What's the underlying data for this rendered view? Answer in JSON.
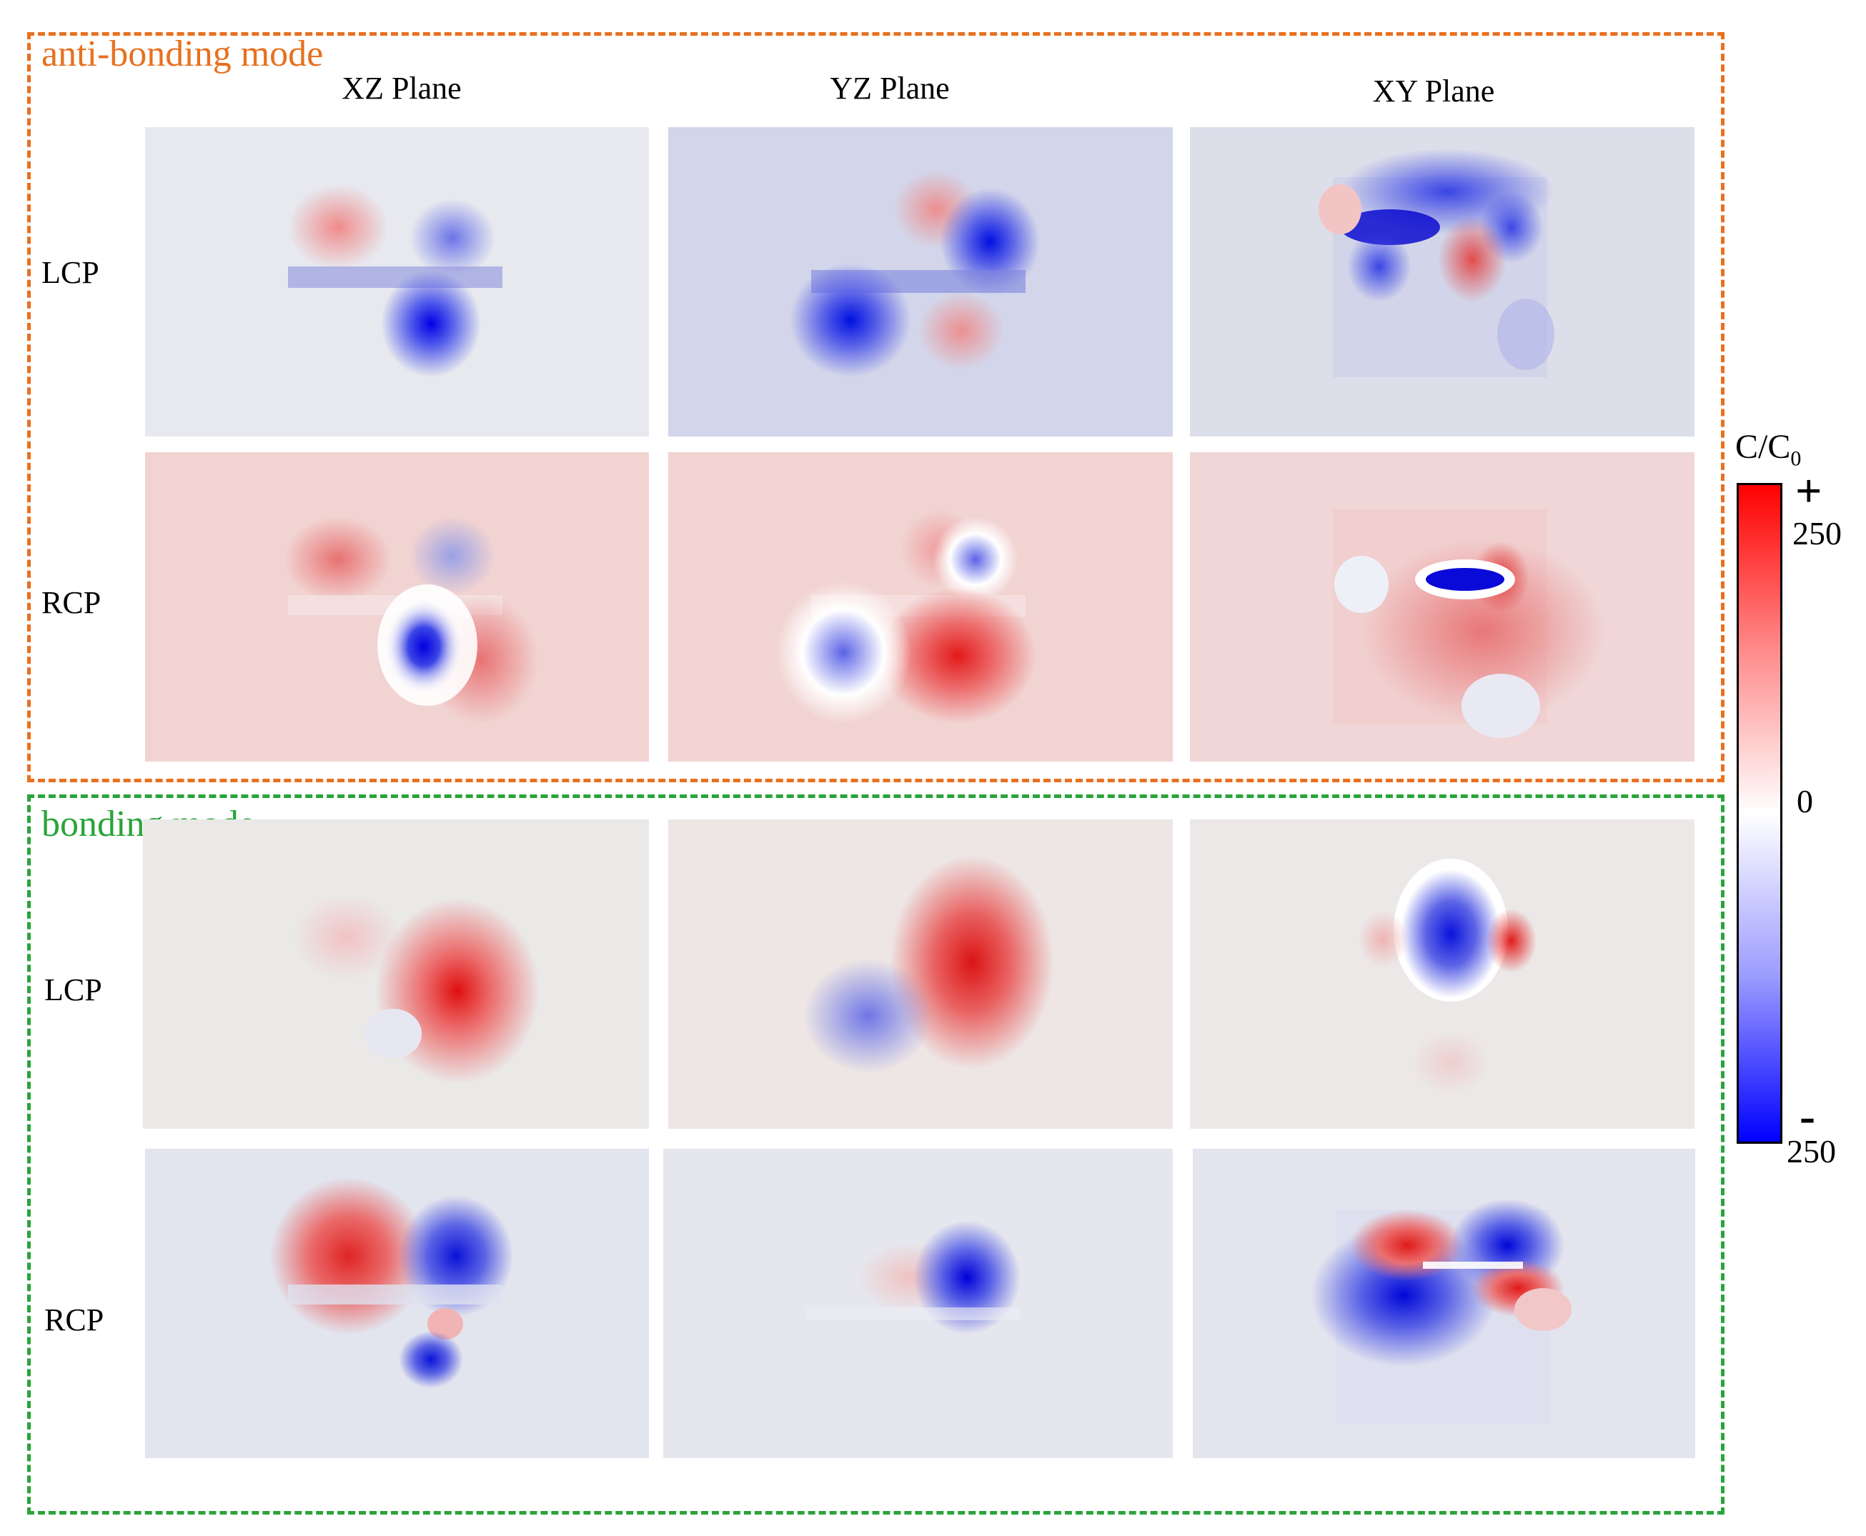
{
  "modes": [
    {
      "title": "anti-bonding mode",
      "color": "#e8701e"
    },
    {
      "title": "bonding mode",
      "color": "#2aa43a"
    }
  ],
  "columns": [
    "XZ Plane",
    "YZ Plane",
    "XY Plane"
  ],
  "row_labels": [
    "LCP",
    "RCP",
    "LCP",
    "RCP"
  ],
  "colorbar": {
    "title": "C/C",
    "title_sub": "0",
    "max_sign": "+",
    "max_label": "250",
    "mid_label": "0",
    "min_sign": "-",
    "min_label": "250",
    "max_color": "#ff0000",
    "mid_color": "#ffffff",
    "min_color": "#0000ff"
  },
  "panel_backgrounds": {
    "anti_lcp": [
      "#e7e9ef",
      "#d3d6ea",
      "#dcdeea"
    ],
    "anti_rcp": [
      "#f1d3d1",
      "#f1d3d1",
      "#f0d6d6"
    ],
    "bond_lcp": [
      "#ebe8e8",
      "#ede6e5",
      "#ece8e8"
    ],
    "bond_rcp": [
      "#e2e4ee",
      "#e6e7ee",
      "#e3e4ee"
    ]
  }
}
